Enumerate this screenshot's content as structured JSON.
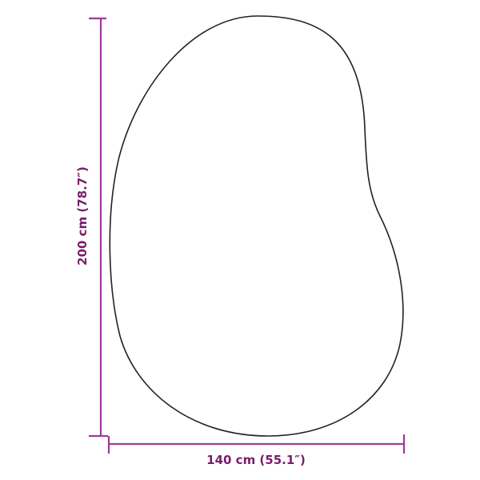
{
  "diagram": {
    "width_label": "140 cm (55.1″)",
    "height_label": "200 cm (78.7″)",
    "colors": {
      "dimension_line": "#9b3a9b",
      "dimension_text": "#7a1d6c",
      "outline": "#222222"
    }
  }
}
